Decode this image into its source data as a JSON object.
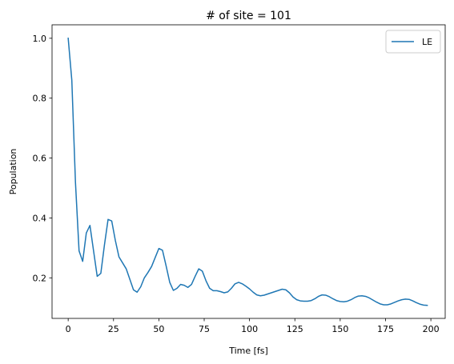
{
  "chart_data": {
    "type": "line",
    "title": "# of site = 101",
    "xlabel": "Time [fs]",
    "ylabel": "Population",
    "xlim": [
      -8.9,
      207.9
    ],
    "ylim": [
      0.0645,
      1.045
    ],
    "xticks": [
      0,
      25,
      50,
      75,
      100,
      125,
      150,
      175,
      200
    ],
    "yticks": [
      0.2,
      0.4,
      0.6,
      0.8,
      1.0
    ],
    "xtick_labels": [
      "0",
      "25",
      "50",
      "75",
      "100",
      "125",
      "150",
      "175",
      "200"
    ],
    "ytick_labels": [
      "0.2",
      "0.4",
      "0.6",
      "0.8",
      "1.0"
    ],
    "grid": false,
    "legend_position": "top-right",
    "series": [
      {
        "name": "LE",
        "color": "#1f77b4",
        "x": [
          0,
          2,
          4,
          6,
          8,
          10,
          12,
          14,
          16,
          18,
          20,
          22,
          24,
          26,
          28,
          30,
          32,
          34,
          36,
          38,
          40,
          42,
          44,
          46,
          48,
          50,
          52,
          54,
          56,
          58,
          60,
          62,
          64,
          66,
          68,
          70,
          72,
          74,
          76,
          78,
          80,
          82,
          84,
          86,
          88,
          90,
          92,
          94,
          96,
          98,
          100,
          102,
          104,
          106,
          108,
          110,
          112,
          114,
          116,
          118,
          120,
          122,
          124,
          126,
          128,
          130,
          132,
          134,
          136,
          138,
          140,
          142,
          144,
          146,
          148,
          150,
          152,
          154,
          156,
          158,
          160,
          162,
          164,
          166,
          168,
          170,
          172,
          174,
          176,
          178,
          180,
          182,
          184,
          186,
          188,
          190,
          192,
          194,
          196,
          198
        ],
        "values": [
          1.0,
          0.86,
          0.52,
          0.29,
          0.255,
          0.35,
          0.375,
          0.29,
          0.205,
          0.215,
          0.31,
          0.395,
          0.39,
          0.325,
          0.27,
          0.25,
          0.23,
          0.195,
          0.16,
          0.152,
          0.17,
          0.2,
          0.218,
          0.238,
          0.268,
          0.298,
          0.292,
          0.24,
          0.185,
          0.158,
          0.165,
          0.178,
          0.175,
          0.168,
          0.178,
          0.205,
          0.23,
          0.222,
          0.19,
          0.165,
          0.157,
          0.157,
          0.154,
          0.15,
          0.153,
          0.165,
          0.18,
          0.185,
          0.18,
          0.172,
          0.163,
          0.152,
          0.143,
          0.14,
          0.142,
          0.146,
          0.15,
          0.154,
          0.158,
          0.162,
          0.16,
          0.15,
          0.136,
          0.127,
          0.123,
          0.122,
          0.122,
          0.124,
          0.13,
          0.138,
          0.143,
          0.142,
          0.137,
          0.13,
          0.124,
          0.121,
          0.12,
          0.122,
          0.127,
          0.134,
          0.139,
          0.14,
          0.138,
          0.133,
          0.126,
          0.119,
          0.113,
          0.11,
          0.11,
          0.113,
          0.118,
          0.123,
          0.127,
          0.129,
          0.128,
          0.123,
          0.117,
          0.112,
          0.109,
          0.108
        ]
      }
    ]
  }
}
